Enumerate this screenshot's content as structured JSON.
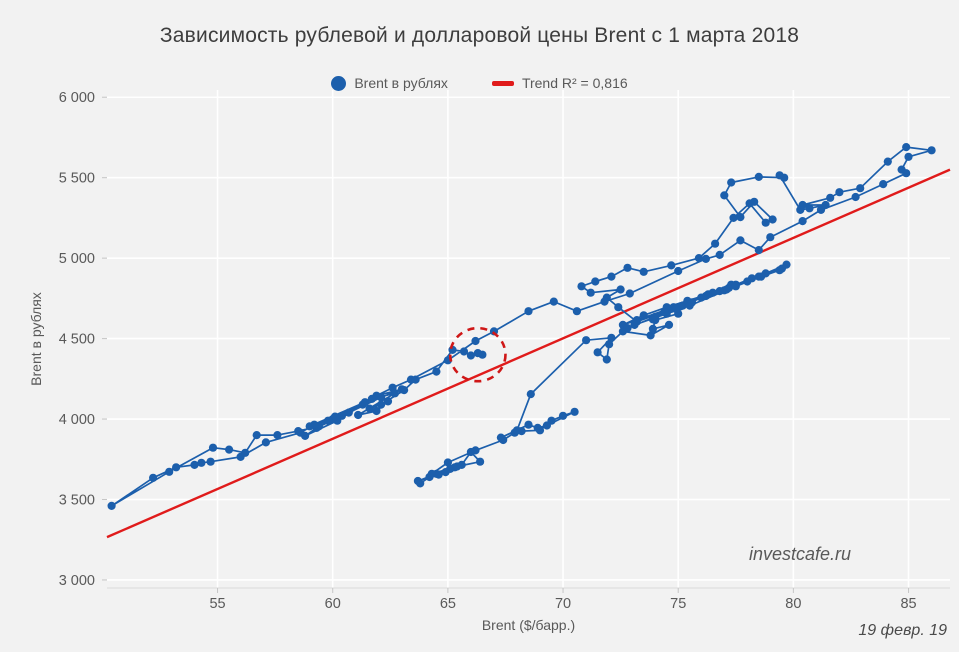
{
  "title": "Зависимость рублевой и долларовой цены Brent с 1 марта 2018",
  "watermark": "investcafe.ru",
  "date_label": "19 февр. 19",
  "colors": {
    "background": "#f2f2f2",
    "grid": "#ffffff",
    "axis": "#d9d9d9",
    "tick": "#c6c6c6",
    "series": "#1c5fac",
    "trend": "#e01b1b",
    "annotation": "#cf1717",
    "text": "#595959",
    "title_text": "#3d3d3d"
  },
  "legend": [
    {
      "marker": "circle",
      "label": "Brent в рублях"
    },
    {
      "marker": "dash",
      "label": "Trend R² = 0,816"
    }
  ],
  "chart_data": {
    "type": "scatter",
    "subtype": "connected-scatter",
    "title": "Зависимость рублевой и долларовой цены Brent с 1 марта 2018",
    "xlabel": "Brent ($/барр.)",
    "ylabel": "Brent в рублях",
    "xlim": [
      50.2,
      86.8
    ],
    "ylim": [
      2950,
      6045
    ],
    "x_ticks": [
      55,
      60,
      65,
      70,
      75,
      80,
      85
    ],
    "x_tick_labels": [
      "55",
      "60",
      "65",
      "70",
      "75",
      "80",
      "85"
    ],
    "y_ticks": [
      3000,
      3500,
      4000,
      4500,
      5000,
      5500,
      6000
    ],
    "y_tick_labels": [
      "3 000",
      "3 500",
      "4 000",
      "4 500",
      "5 000",
      "5 500",
      "6 000"
    ],
    "grid": true,
    "legend_position": "top",
    "series": [
      {
        "name": "Brent в рублях",
        "style": "line+markers",
        "points": [
          [
            63.8,
            3600
          ],
          [
            64.2,
            3640
          ],
          [
            63.7,
            3615
          ],
          [
            64.5,
            3660
          ],
          [
            65.1,
            3690
          ],
          [
            64.6,
            3655
          ],
          [
            65.3,
            3700
          ],
          [
            64.9,
            3670
          ],
          [
            65.6,
            3715
          ],
          [
            66.0,
            3795
          ],
          [
            66.4,
            3735
          ],
          [
            65.4,
            3705
          ],
          [
            64.3,
            3660
          ],
          [
            65.0,
            3730
          ],
          [
            66.2,
            3805
          ],
          [
            67.4,
            3870
          ],
          [
            67.9,
            3915
          ],
          [
            68.2,
            3925
          ],
          [
            69.0,
            3930
          ],
          [
            69.5,
            3990
          ],
          [
            70.0,
            4020
          ],
          [
            70.5,
            4045
          ],
          [
            69.3,
            3960
          ],
          [
            68.9,
            3945
          ],
          [
            68.5,
            3965
          ],
          [
            67.3,
            3885
          ],
          [
            68.0,
            3930
          ],
          [
            68.6,
            4155
          ],
          [
            71.0,
            4490
          ],
          [
            72.1,
            4505
          ],
          [
            71.5,
            4415
          ],
          [
            71.9,
            4370
          ],
          [
            72.0,
            4465
          ],
          [
            72.6,
            4545
          ],
          [
            73.8,
            4520
          ],
          [
            74.6,
            4585
          ],
          [
            73.9,
            4560
          ],
          [
            74.0,
            4615
          ],
          [
            75.0,
            4655
          ],
          [
            74.7,
            4685
          ],
          [
            73.9,
            4620
          ],
          [
            75.2,
            4705
          ],
          [
            76.2,
            4765
          ],
          [
            77.2,
            4815
          ],
          [
            78.5,
            4885
          ],
          [
            79.5,
            4935
          ],
          [
            79.7,
            4960
          ],
          [
            78.8,
            4905
          ],
          [
            77.0,
            4800
          ],
          [
            75.4,
            4735
          ],
          [
            75.1,
            4700
          ],
          [
            76.5,
            4785
          ],
          [
            77.3,
            4835
          ],
          [
            76.0,
            4755
          ],
          [
            74.8,
            4695
          ],
          [
            73.2,
            4615
          ],
          [
            72.6,
            4585
          ],
          [
            73.5,
            4645
          ],
          [
            74.5,
            4695
          ],
          [
            76.3,
            4775
          ],
          [
            77.5,
            4835
          ],
          [
            78.2,
            4875
          ],
          [
            77.1,
            4805
          ],
          [
            76.8,
            4795
          ],
          [
            78.0,
            4855
          ],
          [
            79.4,
            4925
          ],
          [
            78.6,
            4885
          ],
          [
            77.5,
            4825
          ],
          [
            75.5,
            4705
          ],
          [
            74.5,
            4655
          ],
          [
            73.1,
            4585
          ],
          [
            72.8,
            4565
          ],
          [
            74.0,
            4635
          ],
          [
            74.9,
            4685
          ],
          [
            75.6,
            4725
          ],
          [
            74.4,
            4665
          ],
          [
            73.2,
            4605
          ],
          [
            72.4,
            4695
          ],
          [
            71.9,
            4755
          ],
          [
            72.5,
            4805
          ],
          [
            71.2,
            4785
          ],
          [
            70.8,
            4825
          ],
          [
            71.4,
            4855
          ],
          [
            72.1,
            4885
          ],
          [
            72.8,
            4940
          ],
          [
            73.5,
            4915
          ],
          [
            74.7,
            4955
          ],
          [
            75.9,
            5000
          ],
          [
            76.6,
            5090
          ],
          [
            77.4,
            5250
          ],
          [
            78.1,
            5340
          ],
          [
            78.8,
            5220
          ],
          [
            79.1,
            5240
          ],
          [
            78.3,
            5350
          ],
          [
            77.7,
            5255
          ],
          [
            77.0,
            5390
          ],
          [
            77.3,
            5470
          ],
          [
            78.5,
            5505
          ],
          [
            79.6,
            5500
          ],
          [
            79.4,
            5515
          ],
          [
            80.3,
            5300
          ],
          [
            80.7,
            5310
          ],
          [
            81.4,
            5330
          ],
          [
            80.4,
            5330
          ],
          [
            81.6,
            5375
          ],
          [
            82.0,
            5410
          ],
          [
            82.9,
            5435
          ],
          [
            84.1,
            5600
          ],
          [
            84.9,
            5690
          ],
          [
            86.0,
            5670
          ],
          [
            85.0,
            5630
          ],
          [
            84.7,
            5550
          ],
          [
            84.9,
            5528
          ],
          [
            83.9,
            5460
          ],
          [
            82.7,
            5380
          ],
          [
            81.2,
            5300
          ],
          [
            80.4,
            5230
          ],
          [
            79.0,
            5130
          ],
          [
            78.5,
            5050
          ],
          [
            77.7,
            5110
          ],
          [
            76.8,
            5020
          ],
          [
            76.2,
            4995
          ],
          [
            75.0,
            4920
          ],
          [
            72.9,
            4780
          ],
          [
            71.8,
            4730
          ],
          [
            70.6,
            4670
          ],
          [
            69.6,
            4730
          ],
          [
            68.5,
            4670
          ],
          [
            67.0,
            4545
          ],
          [
            66.2,
            4485
          ],
          [
            65.0,
            4365
          ],
          [
            63.4,
            4245
          ],
          [
            62.6,
            4195
          ],
          [
            61.9,
            4145
          ],
          [
            63.0,
            4185
          ],
          [
            62.1,
            4135
          ],
          [
            60.4,
            4020
          ],
          [
            59.3,
            3945
          ],
          [
            58.8,
            3895
          ],
          [
            60.2,
            3990
          ],
          [
            61.3,
            4090
          ],
          [
            60.0,
            4000
          ],
          [
            59.4,
            3955
          ],
          [
            58.5,
            3925
          ],
          [
            57.6,
            3900
          ],
          [
            56.7,
            3900
          ],
          [
            56.2,
            3790
          ],
          [
            55.5,
            3810
          ],
          [
            54.8,
            3822
          ],
          [
            52.9,
            3672
          ],
          [
            50.4,
            3460
          ],
          [
            52.2,
            3635
          ],
          [
            53.2,
            3700
          ],
          [
            54.0,
            3715
          ],
          [
            54.3,
            3728
          ],
          [
            54.7,
            3735
          ],
          [
            56.0,
            3765
          ],
          [
            57.1,
            3855
          ],
          [
            58.6,
            3915
          ],
          [
            59.2,
            3965
          ],
          [
            60.1,
            4015
          ],
          [
            61.4,
            4105
          ],
          [
            59.0,
            3955
          ],
          [
            59.8,
            3990
          ],
          [
            60.7,
            4040
          ],
          [
            61.7,
            4125
          ],
          [
            62.7,
            4160
          ],
          [
            61.1,
            4025
          ],
          [
            61.9,
            4050
          ],
          [
            62.4,
            4110
          ],
          [
            61.6,
            4065
          ],
          [
            62.1,
            4090
          ],
          [
            63.1,
            4180
          ],
          [
            63.6,
            4245
          ],
          [
            64.5,
            4295
          ],
          [
            65.2,
            4430
          ],
          [
            65.7,
            4420
          ],
          [
            66.0,
            4395
          ],
          [
            66.3,
            4410
          ],
          [
            66.5,
            4400
          ]
        ]
      }
    ],
    "trend": {
      "name": "Trend",
      "r2_label": "Trend R² = 0,816",
      "r2": 0.816,
      "x": [
        50.2,
        86.8
      ],
      "y": [
        3266,
        5550
      ]
    },
    "annotation_circle": {
      "x": 66.3,
      "y": 4400,
      "rx": 1.2,
      "ry": 165,
      "style": "dashed"
    }
  }
}
